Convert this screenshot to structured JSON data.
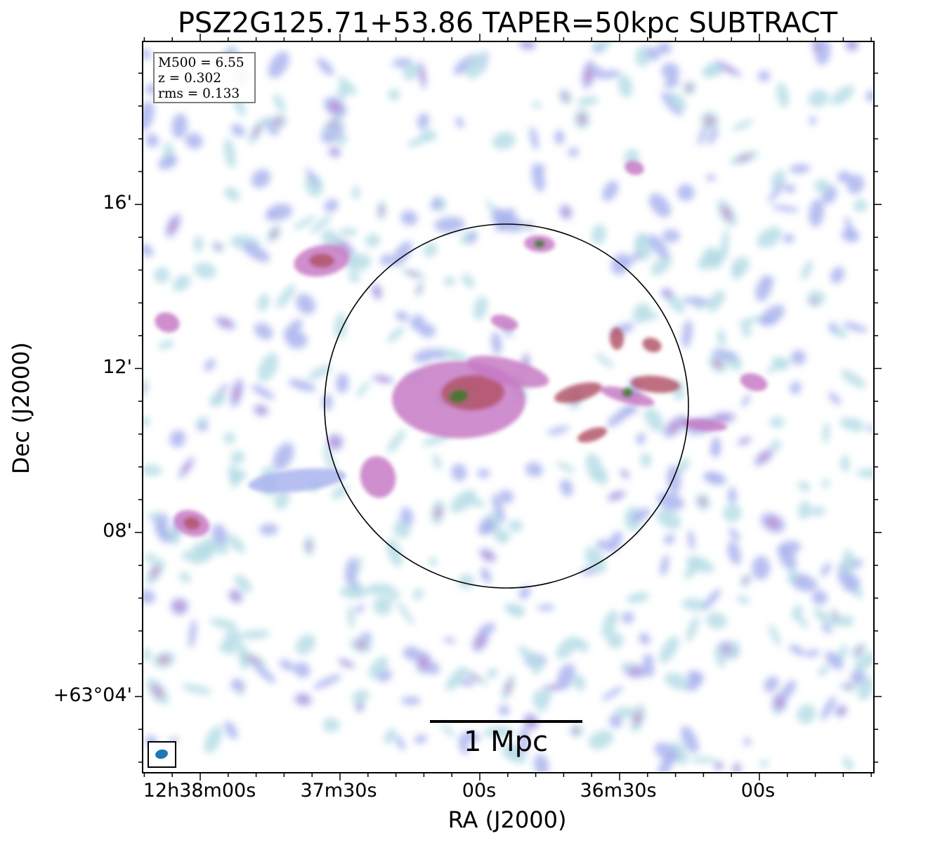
{
  "title": "PSZ2G125.71+53.86 TAPER=50kpc SUBTRACT",
  "info": {
    "mass": "M500 = 6.55",
    "redshift": "z = 0.302",
    "rms": "rms = 0.133"
  },
  "axes": {
    "xlabel": "RA (J2000)",
    "ylabel": "Dec (J2000)",
    "xticks": [
      "12h38m00s",
      "37m30s",
      "00s",
      "36m30s",
      "00s"
    ],
    "yticks": [
      "16'",
      "12'",
      "08'",
      "+63°04'"
    ]
  },
  "scalebar": {
    "label": "1 Mpc"
  },
  "colors": {
    "faint": "#b7dde6",
    "low": "#aab4ee",
    "mid": "#c77ac4",
    "high": "#b3566a",
    "peak": "#3d7a2c",
    "beam": "#1f77b4"
  }
}
